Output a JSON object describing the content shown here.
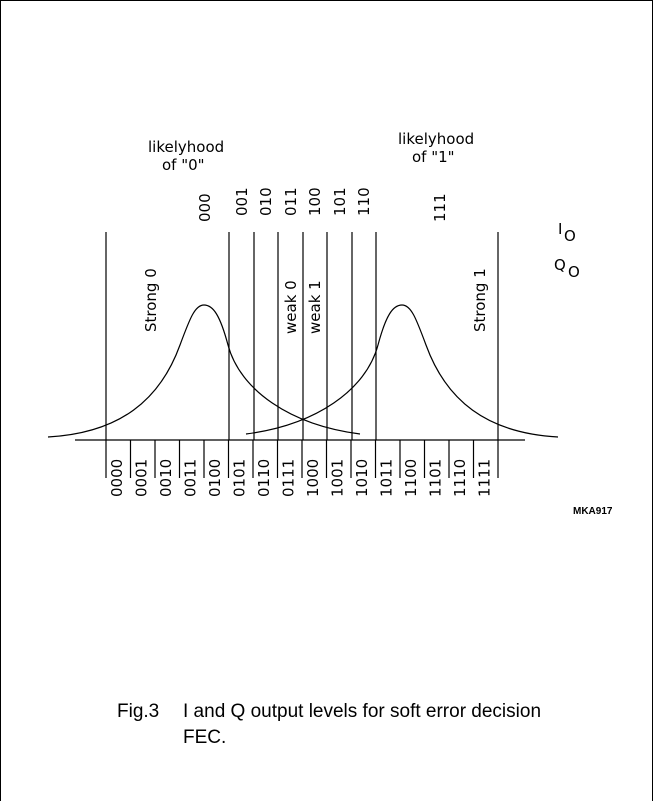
{
  "labels": {
    "likelyhood_zero": [
      "likelyhood",
      "of \"0\""
    ],
    "likelyhood_one": [
      "likelyhood",
      "of \"1\""
    ],
    "i0": "I",
    "i0_sub": "O",
    "q0": "Q",
    "q0_sub": "O",
    "strong0": "Strong 0",
    "strong1": "Strong 1",
    "weak0": "weak 0",
    "weak1": "weak 1",
    "ref_code": "MKA917"
  },
  "top_codes": [
    "000",
    "001",
    "010",
    "011",
    "100",
    "101",
    "110",
    "111"
  ],
  "bottom_codes": [
    "0000",
    "0001",
    "0010",
    "0011",
    "0100",
    "0101",
    "0110",
    "0111",
    "1000",
    "1001",
    "1010",
    "1011",
    "1100",
    "1101",
    "1110",
    "1111"
  ],
  "caption": {
    "number": "Fig.3",
    "text": "I and Q output levels for soft error decision FEC."
  }
}
